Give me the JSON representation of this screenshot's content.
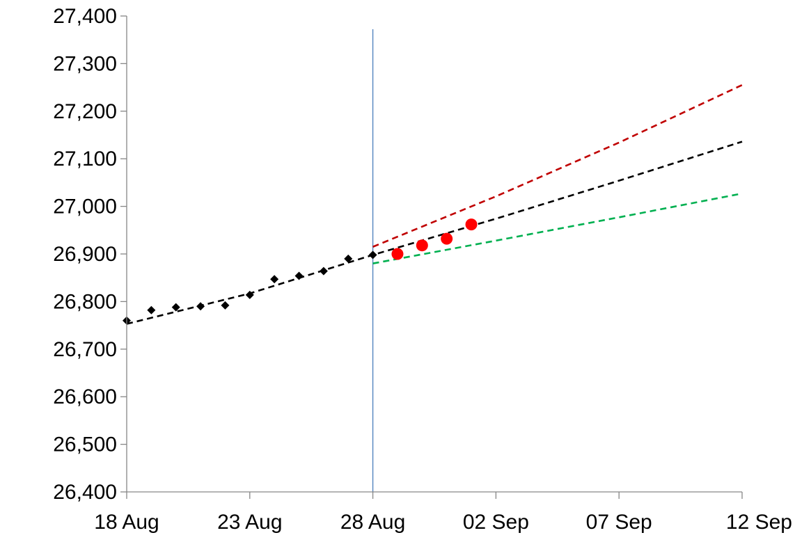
{
  "chart_data": {
    "type": "line",
    "title": "",
    "xlabel": "",
    "ylabel": "",
    "x_is_date": true,
    "xlim": [
      "2023-08-18",
      "2023-09-12"
    ],
    "ylim": [
      26400,
      27400
    ],
    "x_ticks": [
      {
        "date": "2023-08-18",
        "label": "18 Aug"
      },
      {
        "date": "2023-08-23",
        "label": "23 Aug"
      },
      {
        "date": "2023-08-28",
        "label": "28 Aug"
      },
      {
        "date": "2023-09-02",
        "label": "02 Sep"
      },
      {
        "date": "2023-09-07",
        "label": "07 Sep"
      },
      {
        "date": "2023-09-12",
        "label": "12 Sep"
      }
    ],
    "y_ticks": [
      {
        "value": 26400,
        "label": "26,400"
      },
      {
        "value": 26500,
        "label": "26,500"
      },
      {
        "value": 26600,
        "label": "26,600"
      },
      {
        "value": 26700,
        "label": "26,700"
      },
      {
        "value": 26800,
        "label": "26,800"
      },
      {
        "value": 26900,
        "label": "26,900"
      },
      {
        "value": 27000,
        "label": "27,000"
      },
      {
        "value": 27100,
        "label": "27,100"
      },
      {
        "value": 27200,
        "label": "27,200"
      },
      {
        "value": 27300,
        "label": "27,300"
      },
      {
        "value": 27400,
        "label": "27,400"
      }
    ],
    "grid": false,
    "legend": "none",
    "vertical_marker": {
      "date": "2023-08-28",
      "color": "#4a7ebb"
    },
    "series": [
      {
        "kind": "scatter",
        "marker": "diamond",
        "color": "#000000",
        "points": [
          {
            "x": "2023-08-18",
            "y": 26760
          },
          {
            "x": "2023-08-19",
            "y": 26782
          },
          {
            "x": "2023-08-20",
            "y": 26788
          },
          {
            "x": "2023-08-21",
            "y": 26790
          },
          {
            "x": "2023-08-22",
            "y": 26792
          },
          {
            "x": "2023-08-23",
            "y": 26814
          },
          {
            "x": "2023-08-24",
            "y": 26847
          },
          {
            "x": "2023-08-25",
            "y": 26854
          },
          {
            "x": "2023-08-26",
            "y": 26864
          },
          {
            "x": "2023-08-27",
            "y": 26890
          },
          {
            "x": "2023-08-28",
            "y": 26898
          }
        ]
      },
      {
        "kind": "scatter",
        "marker": "circle",
        "color": "#ff0000",
        "points": [
          {
            "x": "2023-08-29",
            "y": 26900
          },
          {
            "x": "2023-08-30",
            "y": 26918
          },
          {
            "x": "2023-08-31",
            "y": 26932
          },
          {
            "x": "2023-09-01",
            "y": 26962
          }
        ]
      },
      {
        "kind": "line",
        "style": "dashed",
        "color": "#000000",
        "points": [
          {
            "x": "2023-08-18",
            "y": 26753
          },
          {
            "x": "2023-08-23",
            "y": 26817
          },
          {
            "x": "2023-08-28",
            "y": 26898
          },
          {
            "x": "2023-09-02",
            "y": 26974
          },
          {
            "x": "2023-09-07",
            "y": 27054
          },
          {
            "x": "2023-09-12",
            "y": 27136
          }
        ]
      },
      {
        "kind": "line",
        "style": "dashed",
        "color": "#c00000",
        "points": [
          {
            "x": "2023-08-28",
            "y": 26915
          },
          {
            "x": "2023-09-02",
            "y": 27021
          },
          {
            "x": "2023-09-07",
            "y": 27134
          },
          {
            "x": "2023-09-12",
            "y": 27255
          }
        ]
      },
      {
        "kind": "line",
        "style": "dashed",
        "color": "#00b050",
        "points": [
          {
            "x": "2023-08-28",
            "y": 26880
          },
          {
            "x": "2023-09-02",
            "y": 26928
          },
          {
            "x": "2023-09-07",
            "y": 26977
          },
          {
            "x": "2023-09-12",
            "y": 27027
          }
        ]
      }
    ]
  }
}
